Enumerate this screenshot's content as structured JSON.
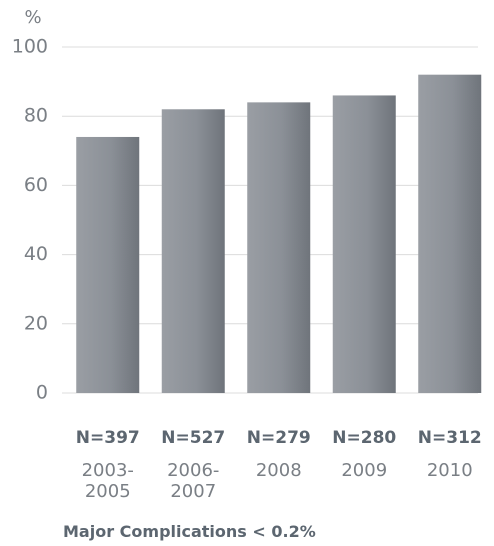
{
  "chart_data": {
    "type": "bar",
    "y_label": "%",
    "categories": [
      "2003-2005",
      "2006-2007",
      "2008",
      "2009",
      "2010"
    ],
    "n_labels": [
      "N=397",
      "N=527",
      "N=279",
      "N=280",
      "N=312"
    ],
    "values": [
      74,
      82,
      84,
      86,
      92
    ],
    "color": "#8b9097",
    "ylim": [
      0,
      100
    ],
    "yticks": [
      0,
      20,
      40,
      60,
      80,
      100
    ],
    "grid": true,
    "footnote": "Major Complications < 0.2%"
  }
}
